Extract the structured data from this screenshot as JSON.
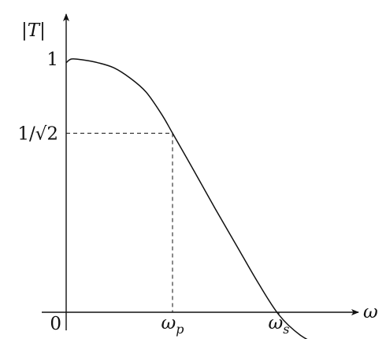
{
  "chart_data": {
    "type": "line",
    "title": "",
    "ylabel": "|T|",
    "xlabel": "ω",
    "yticks": [
      {
        "label": "1",
        "value": 1.0
      },
      {
        "label": "1/√2",
        "value": 0.7071
      }
    ],
    "xticks": [
      {
        "base": "0",
        "sub": "",
        "value": 0
      },
      {
        "base": "ω",
        "sub": "p",
        "value": 1.0
      },
      {
        "base": "ω",
        "sub": "s",
        "value": 2.0
      }
    ],
    "series": [
      {
        "name": "",
        "x": [
          0.0,
          0.05,
          0.15,
          0.3,
          0.45,
          0.6,
          0.75,
          0.9,
          1.0,
          1.2,
          1.4,
          1.6,
          1.8,
          2.0,
          2.2,
          2.4
        ],
        "y": [
          0.985,
          1.0,
          0.997,
          0.985,
          0.965,
          0.925,
          0.87,
          0.78,
          0.707,
          0.56,
          0.41,
          0.265,
          0.12,
          -0.01,
          -0.09,
          -0.135
        ]
      }
    ],
    "xlim": [
      0,
      2.75
    ],
    "ylim": [
      -0.52,
      1.35
    ],
    "guides": [
      {
        "kind": "horizontal-dashed",
        "y": 0.7071,
        "x_to": 1.0
      },
      {
        "kind": "vertical-dashed",
        "x": 1.0,
        "y_to": 0.7071
      },
      {
        "kind": "vertical-dashed",
        "x": 2.0,
        "y_to": -0.01
      }
    ],
    "grid": false,
    "legend": "none"
  },
  "colors": {
    "ink": "#111111"
  }
}
